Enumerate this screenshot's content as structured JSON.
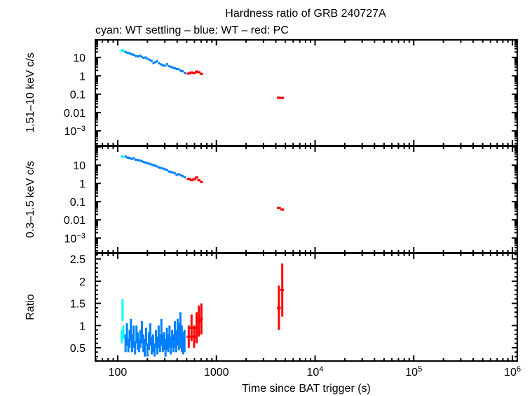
{
  "chart_data": {
    "type": "scatter",
    "title": "Hardness ratio of GRB 240727A",
    "subtitle": "cyan: WT settling – blue: WT – red: PC",
    "xlabel": "Time since BAT trigger (s)",
    "xscale": "log",
    "xlim": [
      59.3,
      1120000
    ],
    "x_ticks": [
      {
        "value": 100,
        "label": "100"
      },
      {
        "value": 1000,
        "label": "1000"
      },
      {
        "value": 10000,
        "label": "10",
        "sup": "4"
      },
      {
        "value": 100000,
        "label": "10",
        "sup": "5"
      },
      {
        "value": 1000000,
        "label": "10",
        "sup": "6"
      }
    ],
    "series_colors": {
      "wt_settling": "#00ffff",
      "wt": "#0080ff",
      "pc": "#ff0000"
    },
    "panels": [
      {
        "id": "hard",
        "ylabel": "1.51–10 keV c/s",
        "yscale": "log",
        "ylim": [
          0.00016,
          91
        ],
        "y_ticks": [
          {
            "value": 10,
            "label": "10"
          },
          {
            "value": 1,
            "label": "1"
          },
          {
            "value": 0.1,
            "label": "0.1"
          },
          {
            "value": 0.01,
            "label": "0.01"
          },
          {
            "value": 0.001,
            "label": "10",
            "sup": "−3"
          }
        ],
        "series": [
          {
            "name": "WT settling",
            "color_key": "wt_settling",
            "points": [
              [
                110,
                24,
                0.5
              ],
              [
                112,
                26,
                0.5
              ],
              [
                114,
                22,
                0.5
              ]
            ]
          },
          {
            "name": "WT",
            "color_key": "wt",
            "points": [
              [
                120,
                20
              ],
              [
                126,
                18
              ],
              [
                132,
                17
              ],
              [
                138,
                15
              ],
              [
                145,
                14
              ],
              [
                152,
                12
              ],
              [
                160,
                11.5
              ],
              [
                168,
                12.5
              ],
              [
                175,
                11
              ],
              [
                183,
                9.5
              ],
              [
                192,
                10
              ],
              [
                200,
                8.5
              ],
              [
                210,
                7.5
              ],
              [
                220,
                6.5
              ],
              [
                230,
                5
              ],
              [
                240,
                5.5
              ],
              [
                250,
                6.2
              ],
              [
                262,
                4.8
              ],
              [
                275,
                4.2
              ],
              [
                288,
                3.8
              ],
              [
                300,
                3.5
              ],
              [
                315,
                4.3
              ],
              [
                330,
                3.4
              ],
              [
                345,
                3.1
              ],
              [
                360,
                2.8
              ],
              [
                378,
                2.6
              ],
              [
                395,
                2.4
              ],
              [
                415,
                2.3
              ],
              [
                435,
                1.9
              ],
              [
                455,
                1.8
              ],
              [
                480,
                1.4
              ]
            ]
          },
          {
            "name": "PC",
            "color_key": "pc",
            "points": [
              [
                525,
                1.35,
                25
              ],
              [
                560,
                1.5,
                25
              ],
              [
                595,
                1.4,
                25
              ],
              [
                630,
                1.7,
                25
              ],
              [
                665,
                1.55,
                25
              ],
              [
                705,
                1.3,
                25
              ],
              [
                4300,
                0.065,
                200
              ],
              [
                4650,
                0.063,
                200
              ]
            ]
          }
        ]
      },
      {
        "id": "soft",
        "ylabel": "0.3–1.5 keV c/s",
        "yscale": "log",
        "ylim": [
          0.00016,
          110
        ],
        "y_ticks": [
          {
            "value": 10,
            "label": "10"
          },
          {
            "value": 1,
            "label": "1"
          },
          {
            "value": 0.1,
            "label": "0.1"
          },
          {
            "value": 0.01,
            "label": "0.01"
          },
          {
            "value": 0.001,
            "label": "10",
            "sup": "−3"
          }
        ],
        "series": [
          {
            "name": "WT settling",
            "color_key": "wt_settling",
            "points": [
              [
                110,
                30,
                0.5
              ],
              [
                113,
                28,
                0.5
              ]
            ]
          },
          {
            "name": "WT",
            "color_key": "wt",
            "points": [
              [
                120,
                30
              ],
              [
                126,
                26
              ],
              [
                132,
                25
              ],
              [
                138,
                22
              ],
              [
                145,
                24
              ],
              [
                152,
                20
              ],
              [
                160,
                19
              ],
              [
                168,
                18
              ],
              [
                175,
                17
              ],
              [
                183,
                15
              ],
              [
                192,
                14
              ],
              [
                200,
                13
              ],
              [
                210,
                12
              ],
              [
                220,
                11
              ],
              [
                230,
                10
              ],
              [
                240,
                9.5
              ],
              [
                250,
                8.5
              ],
              [
                262,
                7.5
              ],
              [
                275,
                7
              ],
              [
                288,
                6.5
              ],
              [
                300,
                6
              ],
              [
                315,
                5.5
              ],
              [
                330,
                4.5
              ],
              [
                345,
                4.2
              ],
              [
                360,
                4.0
              ],
              [
                378,
                3.6
              ],
              [
                395,
                3.0
              ],
              [
                415,
                3.2
              ],
              [
                435,
                2.8
              ],
              [
                455,
                2.5
              ],
              [
                480,
                2.2
              ]
            ]
          },
          {
            "name": "PC",
            "color_key": "pc",
            "points": [
              [
                525,
                1.8,
                25
              ],
              [
                560,
                1.5,
                25
              ],
              [
                595,
                1.7,
                25
              ],
              [
                630,
                2.1,
                25
              ],
              [
                665,
                1.5,
                25
              ],
              [
                705,
                1.2,
                25
              ],
              [
                4300,
                0.045,
                200
              ],
              [
                4650,
                0.037,
                200
              ]
            ]
          }
        ]
      },
      {
        "id": "ratio",
        "ylabel": "Ratio",
        "yscale": "linear",
        "ylim": [
          0.2,
          2.63
        ],
        "y_ticks": [
          {
            "value": 2.5,
            "label": "2.5"
          },
          {
            "value": 2,
            "label": "2"
          },
          {
            "value": 1.5,
            "label": "1.5"
          },
          {
            "value": 1,
            "label": "1"
          },
          {
            "value": 0.5,
            "label": "0.5"
          }
        ],
        "series": [
          {
            "name": "WT settling",
            "color_key": "wt_settling",
            "points": [
              [
                110,
                0.75,
                0.5,
                0.15
              ],
              [
                112,
                1.35,
                0.5,
                0.25
              ],
              [
                114,
                0.85,
                0.5,
                0.15
              ]
            ]
          },
          {
            "name": "WT",
            "color_key": "wt",
            "points": [
              [
                120,
                0.6,
                2,
                0.2
              ],
              [
                124,
                0.8,
                2,
                0.25
              ],
              [
                128,
                0.55,
                2,
                0.15
              ],
              [
                132,
                0.7,
                2,
                0.2
              ],
              [
                136,
                0.9,
                2,
                0.25
              ],
              [
                140,
                0.6,
                2,
                0.2
              ],
              [
                145,
                0.75,
                2,
                0.25
              ],
              [
                150,
                0.5,
                2,
                0.15
              ],
              [
                155,
                0.8,
                2,
                0.2
              ],
              [
                160,
                0.65,
                2,
                0.2
              ],
              [
                165,
                0.55,
                2,
                0.15
              ],
              [
                170,
                0.7,
                2,
                0.2
              ],
              [
                176,
                0.85,
                2,
                0.25
              ],
              [
                182,
                0.6,
                2,
                0.2
              ],
              [
                188,
                0.5,
                2,
                0.2
              ],
              [
                194,
                0.75,
                2,
                0.2
              ],
              [
                200,
                0.45,
                2,
                0.15
              ],
              [
                207,
                0.65,
                2,
                0.2
              ],
              [
                214,
                0.8,
                2,
                0.25
              ],
              [
                221,
                0.55,
                2,
                0.2
              ],
              [
                228,
                0.6,
                2,
                0.2
              ],
              [
                236,
                0.45,
                2,
                0.15
              ],
              [
                244,
                0.7,
                2,
                0.2
              ],
              [
                252,
                0.55,
                2,
                0.2
              ],
              [
                260,
                0.75,
                2,
                0.25
              ],
              [
                268,
                0.6,
                2,
                0.2
              ],
              [
                277,
                0.85,
                2,
                0.3
              ],
              [
                286,
                0.6,
                2,
                0.2
              ],
              [
                295,
                0.65,
                2,
                0.2
              ],
              [
                305,
                0.5,
                2,
                0.2
              ],
              [
                315,
                0.7,
                2,
                0.25
              ],
              [
                325,
                0.6,
                2,
                0.2
              ],
              [
                335,
                0.75,
                2,
                0.25
              ],
              [
                345,
                0.55,
                2,
                0.2
              ],
              [
                356,
                0.7,
                2,
                0.2
              ],
              [
                368,
                0.6,
                2,
                0.2
              ],
              [
                380,
                0.8,
                2,
                0.3
              ],
              [
                392,
                0.65,
                2,
                0.25
              ],
              [
                405,
                0.85,
                2,
                0.3
              ],
              [
                418,
                0.75,
                2,
                0.3
              ],
              [
                432,
                0.9,
                2,
                0.4
              ],
              [
                446,
                0.7,
                2,
                0.3
              ],
              [
                460,
                0.6,
                2,
                0.25
              ],
              [
                475,
                0.65,
                2,
                0.25
              ]
            ]
          },
          {
            "name": "PC",
            "color_key": "pc",
            "points": [
              [
                525,
                0.75,
                25,
                0.25
              ],
              [
                560,
                0.95,
                25,
                0.3
              ],
              [
                595,
                0.75,
                25,
                0.25
              ],
              [
                630,
                0.95,
                25,
                0.35
              ],
              [
                665,
                1.1,
                25,
                0.35
              ],
              [
                705,
                1.15,
                25,
                0.35
              ],
              [
                4300,
                1.4,
                200,
                0.5
              ],
              [
                4650,
                1.8,
                200,
                0.6
              ]
            ]
          }
        ]
      }
    ]
  }
}
